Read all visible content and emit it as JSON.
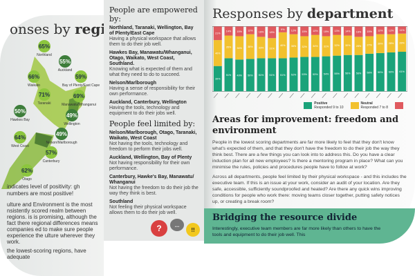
{
  "left_page": {
    "title_prefix": "onses by ",
    "title_bold": "region",
    "regions": [
      {
        "label": "Northland",
        "value": "65%"
      },
      {
        "label": "Auckland",
        "value": "55%"
      },
      {
        "label": "Bay of Plenty/East Cape",
        "value": "59%"
      },
      {
        "label": "Waikato",
        "value": "66%"
      },
      {
        "label": "Taranaki",
        "value": "71%"
      },
      {
        "label": "Manawatu/Whanganui",
        "value": "69%"
      },
      {
        "label": "Hawkes Bay",
        "value": "50%"
      },
      {
        "label": "Wellington",
        "value": "49%"
      },
      {
        "label": "Nelson/Marlborough",
        "value": "49%"
      },
      {
        "label": "West Coast",
        "value": "64%"
      },
      {
        "label": "Canterbury",
        "value": "57%"
      },
      {
        "label": "Otago",
        "value": "62%"
      }
    ],
    "legend_note": "indicates level of positivity: gh numbers are most positive!",
    "body_text": "ulture and Environment is the most nsistently scored realm between regions. is is promising, although the fact there regional differences means companies ed to make sure people experience the ulture wherever they work.",
    "body_text2": "the lowest-scoring regions, have adequate"
  },
  "column": {
    "empowered_title": "People are empowered by:",
    "empowered": [
      {
        "regions": "Northland, Taranaki, Wellington, Bay of Plenty/East Cape",
        "text": "Having a physical workspace that allows them to do their job well."
      },
      {
        "regions": "Hawkes Bay, Manawatu/Whanganui, Otago, Waikato, West Coast, Southland.",
        "text": "Knowing what is expected of them and what they need to do to succeed."
      },
      {
        "regions": "Nelson/Marlborough",
        "text": "Having a sense of responsibility for their own performance."
      },
      {
        "regions": "Auckland, Canterbury, Wellington",
        "text": "Having the tools, technology and equipment to do their jobs well."
      }
    ],
    "limited_title": "People feel limited by:",
    "limited": [
      {
        "regions": "Nelson/Marlborough, Otago, Taranaki, Waikato, West Coast",
        "text": "Not having the tools, technology and freedom to perform their jobs well."
      },
      {
        "regions": "Auckland, Wellington, Bay of Plenty",
        "text": "Not having responsibility for their own performance."
      },
      {
        "regions": "Canterbury, Hawke's Bay, Manawatu/ Whanganui",
        "text": "Not having the freedom to do their job the way they think is best."
      },
      {
        "regions": "Southland",
        "text": "Not feeling their physical workspace allows them to do their job well."
      }
    ],
    "icon_glyphs": {
      "question": "?",
      "speech": "...",
      "emoji": "!!"
    }
  },
  "right_page": {
    "title_prefix": "Responses by ",
    "title_bold": "department",
    "improvement_title": "Areas for improvement: freedom and environment",
    "improvement_p1": "People in the lowest scoring departments are far more likely to feel that they don't know what's expected of them, and that they don't have the freedom to do their job the way they think best. There are a few things you can look into to address this. Do you have a clear induction plan for all new employees? Is there a mentoring program in place? What can you minimise the rules, policies and procedures people have to follow at work?",
    "improvement_p2": "Across all departments, people feel limited by their physical workspace - and this includes the executive team. If this is an issue at your work, consider an audit of your location. Are they safe, accessible, sufficiently soundproofed and heated? Are there any quick wins improving conditions for people who work there: moving teams closer together, putting safety notices up, or creating a break room?",
    "resource_title": "Bridging the resource divide",
    "resource_text": "Interestingly, executive team members are far more likely than others to have the tools and equipment to do their job well. This"
  },
  "chart_data": {
    "type": "bar",
    "stacked": true,
    "title": "Responses by department",
    "ylim": [
      0,
      100
    ],
    "series": [
      {
        "name": "Positive",
        "color": "#1aa37a",
        "values": [
          39,
          51,
          49,
          50,
          51,
          51,
          51,
          52,
          53,
          53,
          54,
          55,
          56,
          56,
          58,
          59,
          60,
          61
        ]
      },
      {
        "name": "Neutral",
        "color": "#f2c12e",
        "values": [
          40,
          35,
          36,
          38,
          33,
          31,
          40,
          36,
          32,
          34,
          31,
          32,
          30,
          28,
          27,
          29,
          28,
          28
        ]
      },
      {
        "color": "#e05a5f",
        "values": [
          21,
          14,
          15,
          12,
          16,
          18,
          9,
          12,
          15,
          13,
          15,
          13,
          14,
          16,
          15,
          12,
          12,
          11
        ]
      }
    ],
    "legend": [
      {
        "label": "Positive",
        "sub": "Responded 9 to 10"
      },
      {
        "label": "Neutral",
        "sub": "Responded 7 to 8"
      }
    ],
    "legend_position": "bottom-right"
  }
}
